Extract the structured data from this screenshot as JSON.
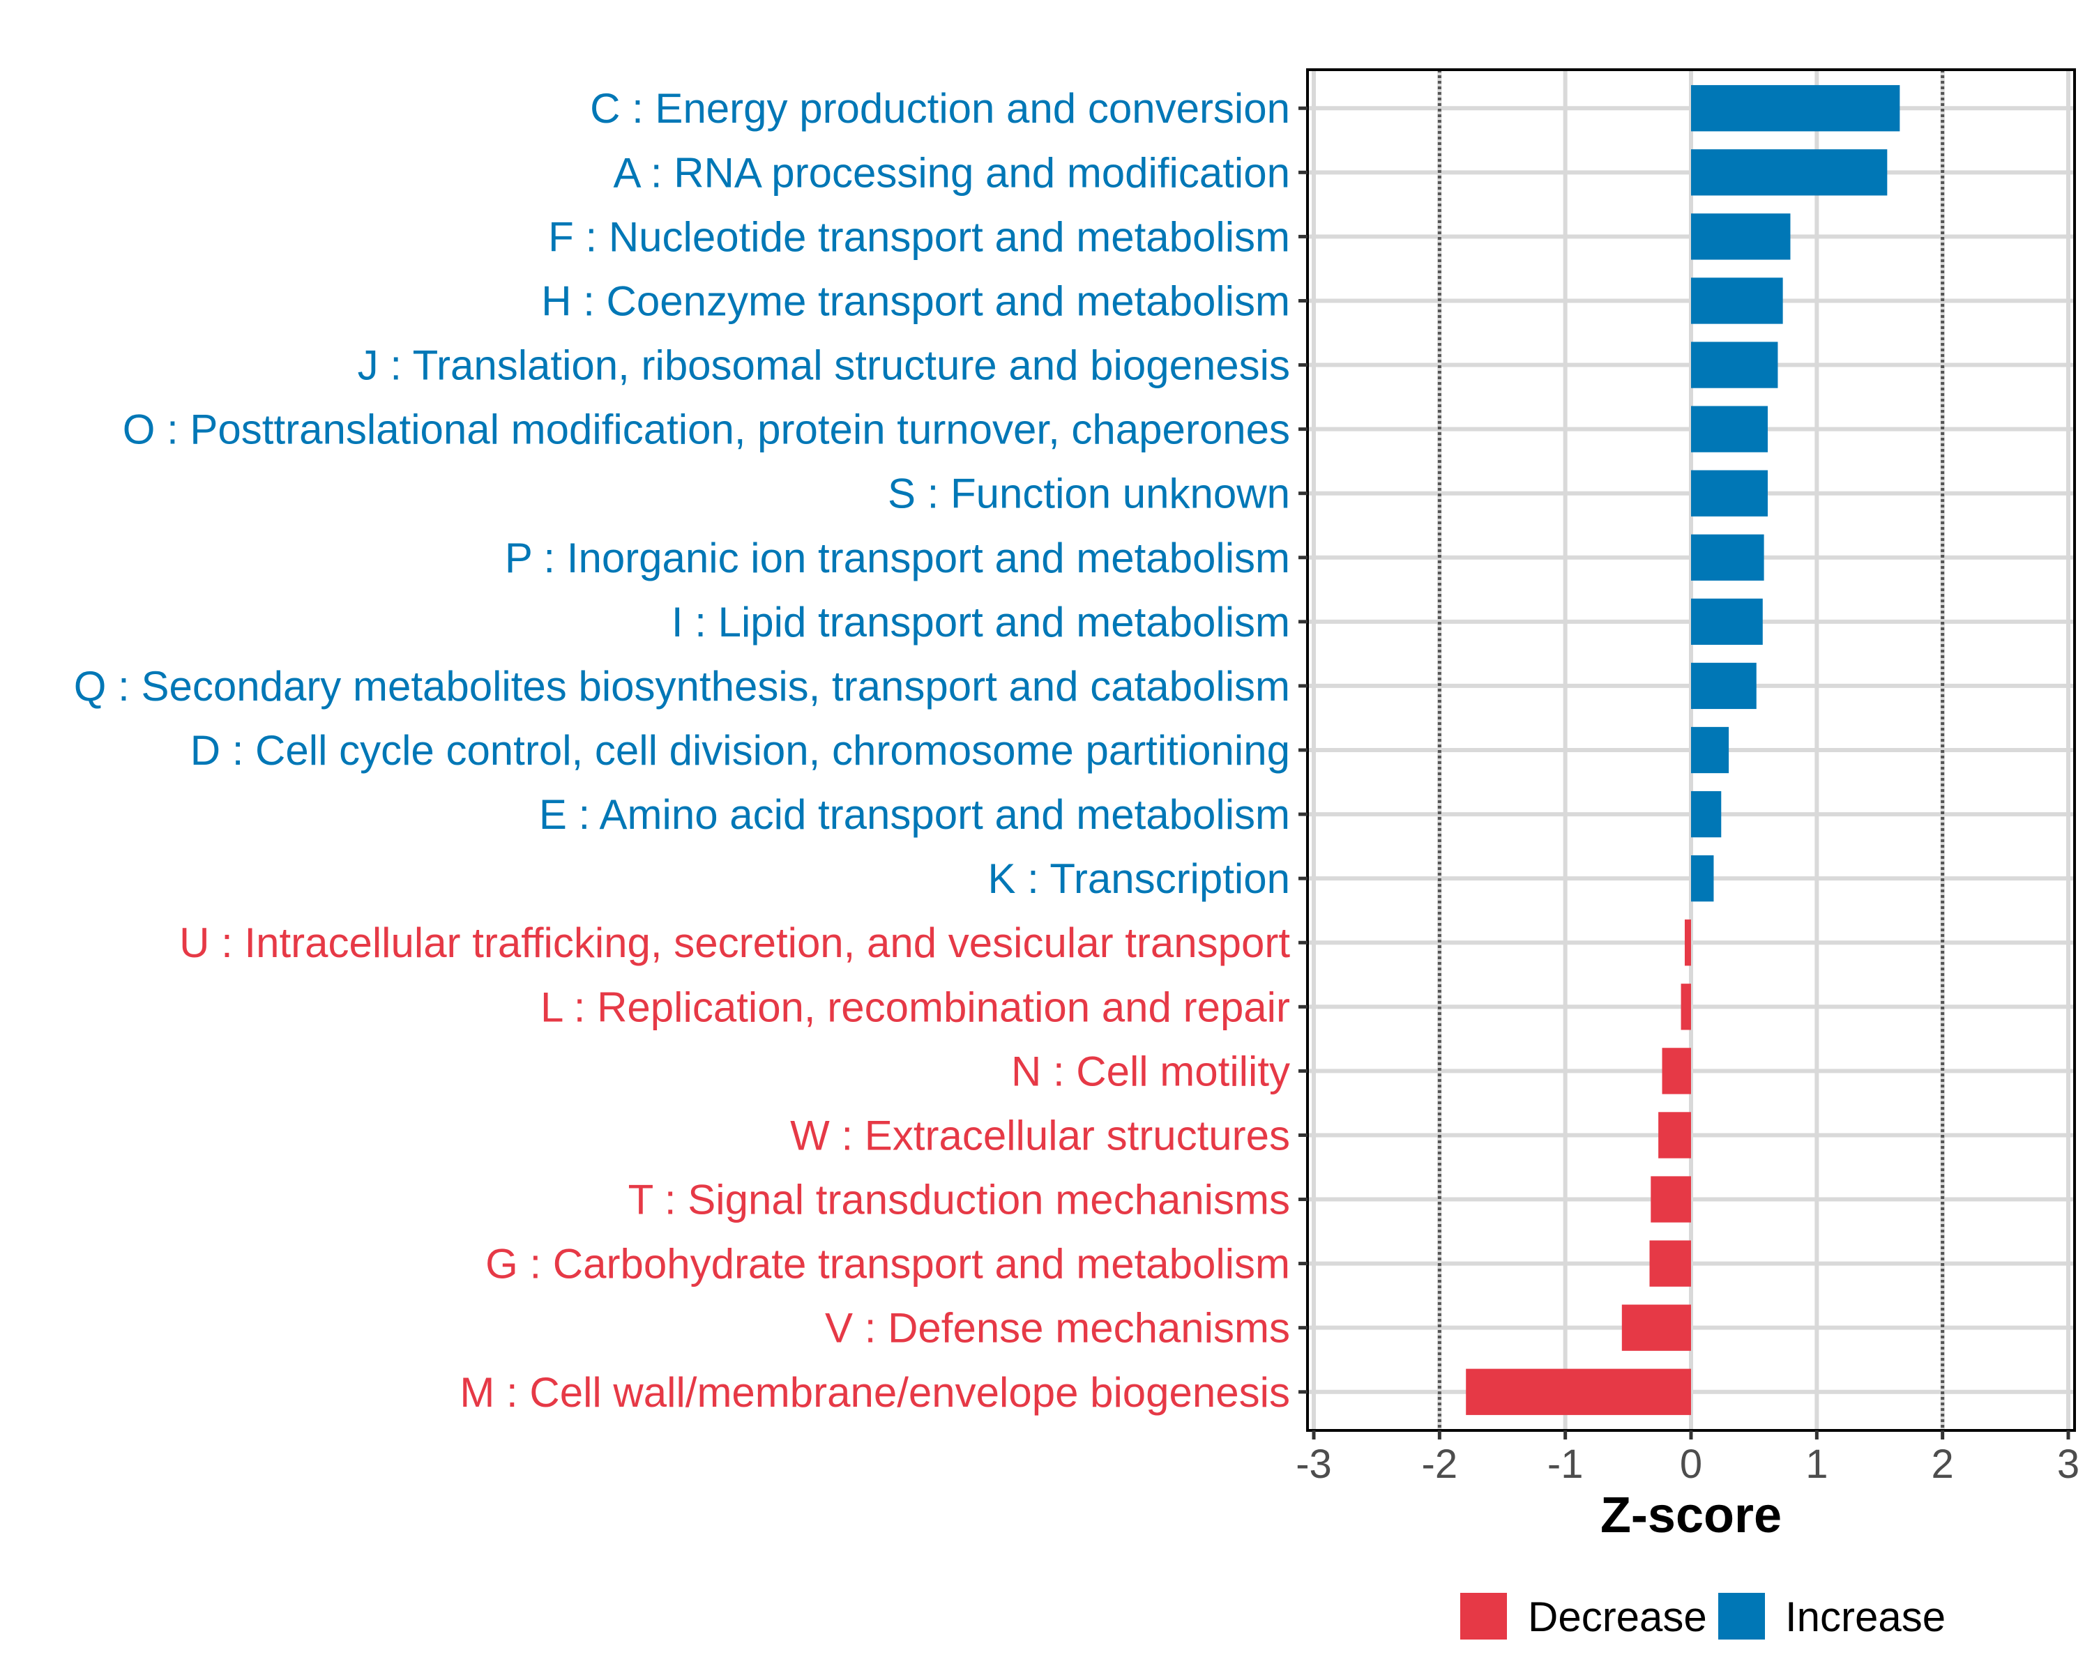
{
  "chart_data": {
    "type": "bar",
    "orientation": "horizontal",
    "title": "",
    "xlabel": "Z-score",
    "ylabel": "",
    "xlim": [
      -3.05,
      3.05
    ],
    "xticks": [
      -3,
      -2,
      -1,
      0,
      1,
      2,
      3
    ],
    "xtick_labels": [
      "-3",
      "-2",
      "-1",
      "0",
      "1",
      "2",
      "3"
    ],
    "reference_lines": [
      -2,
      2
    ],
    "grid": true,
    "legend": {
      "position": "bottom",
      "entries": [
        {
          "label": "Decrease",
          "color": "#E63946"
        },
        {
          "label": "Increase",
          "color": "#0077B6"
        }
      ]
    },
    "colors": {
      "Increase": "#0077B6",
      "Decrease": "#E63946"
    },
    "categories": [
      "C : Energy production and conversion",
      "A : RNA processing and modification",
      "F : Nucleotide transport and metabolism",
      "H : Coenzyme transport and metabolism",
      "J : Translation, ribosomal structure and biogenesis",
      "O : Posttranslational modification, protein turnover, chaperones",
      "S : Function unknown",
      "P : Inorganic ion transport and metabolism",
      "I : Lipid transport and metabolism",
      "Q : Secondary metabolites biosynthesis, transport and catabolism",
      "D : Cell cycle control, cell division, chromosome partitioning",
      "E : Amino acid transport and metabolism",
      "K : Transcription",
      "U : Intracellular trafficking, secretion, and vesicular transport",
      "L : Replication, recombination and repair",
      "N : Cell motility",
      "W : Extracellular structures",
      "T : Signal transduction mechanisms",
      "G : Carbohydrate transport and metabolism",
      "V : Defense mechanisms",
      "M : Cell wall/membrane/envelope biogenesis"
    ],
    "values": [
      1.66,
      1.56,
      0.79,
      0.73,
      0.69,
      0.61,
      0.61,
      0.58,
      0.57,
      0.52,
      0.3,
      0.24,
      0.18,
      -0.05,
      -0.08,
      -0.23,
      -0.26,
      -0.32,
      -0.33,
      -0.55,
      -1.79
    ],
    "groups": [
      "Increase",
      "Increase",
      "Increase",
      "Increase",
      "Increase",
      "Increase",
      "Increase",
      "Increase",
      "Increase",
      "Increase",
      "Increase",
      "Increase",
      "Increase",
      "Decrease",
      "Decrease",
      "Decrease",
      "Decrease",
      "Decrease",
      "Decrease",
      "Decrease",
      "Decrease"
    ]
  }
}
